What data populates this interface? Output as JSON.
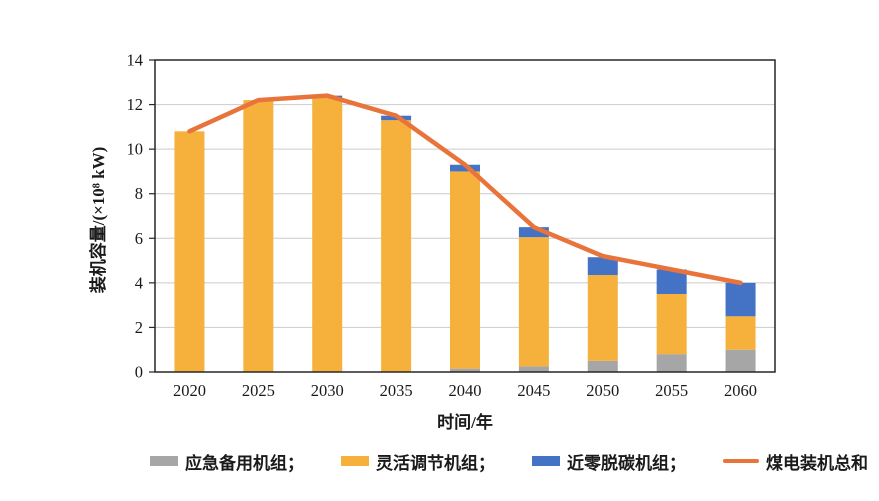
{
  "chart_data": {
    "type": "bar",
    "subtype": "stacked-bars-with-line",
    "title": "",
    "xlabel": "时间/年",
    "ylabel": "装机容量/(×10⁸ kW)",
    "categories": [
      "2020",
      "2025",
      "2030",
      "2035",
      "2040",
      "2045",
      "2050",
      "2055",
      "2060"
    ],
    "series": [
      {
        "name": "应急备用机组",
        "type": "bar",
        "color": "#A6A6A6",
        "values": [
          0,
          0,
          0,
          0,
          0.15,
          0.25,
          0.5,
          0.8,
          1.0
        ]
      },
      {
        "name": "灵活调节机组",
        "type": "bar",
        "color": "#F5B13C",
        "values": [
          10.8,
          12.2,
          12.3,
          11.3,
          8.85,
          5.8,
          3.85,
          2.7,
          1.5
        ]
      },
      {
        "name": "近零脱碳机组",
        "type": "bar",
        "color": "#4472C4",
        "values": [
          0,
          0,
          0.1,
          0.2,
          0.3,
          0.45,
          0.8,
          1.1,
          1.5
        ]
      },
      {
        "name": "煤电装机总和",
        "type": "line",
        "color": "#E8743B",
        "values": [
          10.8,
          12.2,
          12.4,
          11.5,
          9.3,
          6.5,
          5.2,
          4.6,
          4.0
        ]
      }
    ],
    "ylim": [
      0,
      14
    ],
    "yticks": [
      0,
      2,
      4,
      6,
      8,
      10,
      12,
      14
    ],
    "grid": "horizontal",
    "legend_position": "bottom",
    "axis_color": "#262626",
    "grid_color": "#CBCBCB",
    "tick_label_color": "#1a1a1a"
  },
  "legend": {
    "items": [
      {
        "label": "应急备用机组；",
        "swatch": "bar",
        "color": "#A6A6A6"
      },
      {
        "label": "灵活调节机组；",
        "swatch": "bar",
        "color": "#F5B13C"
      },
      {
        "label": "近零脱碳机组；",
        "swatch": "bar",
        "color": "#4472C4"
      },
      {
        "label": "煤电装机总和",
        "swatch": "line",
        "color": "#E8743B"
      }
    ]
  }
}
